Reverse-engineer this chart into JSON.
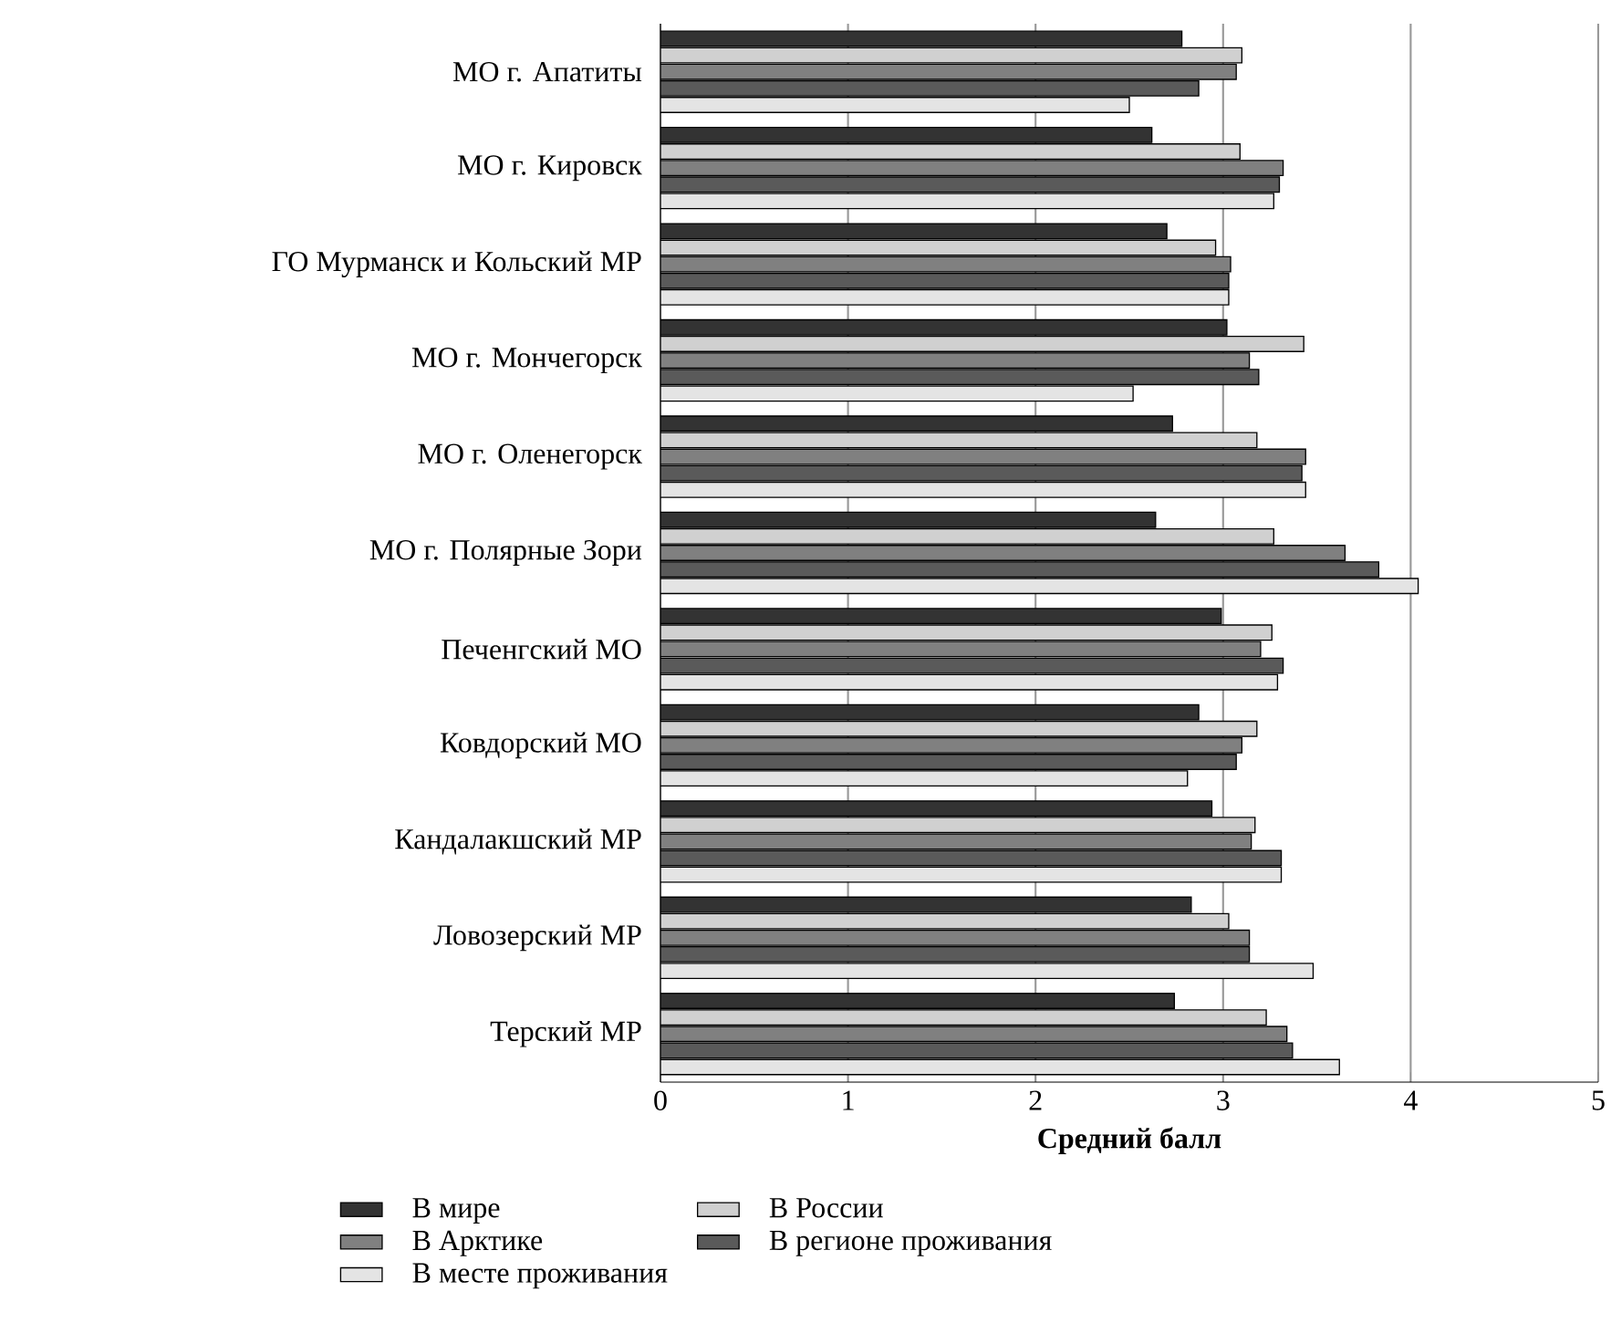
{
  "chart_data": {
    "type": "bar",
    "orientation": "horizontal",
    "xlabel": "Средний балл",
    "categories": [
      "МО г. Апатиты",
      "МО г. Кировск",
      "ГО Мурманск и Кольский МР",
      "МО г. Мончегорск",
      "МО г. Оленегорск",
      "МО г. Полярные Зори",
      "Печенгский МО",
      "Ковдорский МО",
      "Кандалакшский  МР",
      "Ловозерский МР",
      "Терский МР"
    ],
    "series": [
      {
        "name": "В мире",
        "color": "#333333",
        "values": [
          2.78,
          2.62,
          2.7,
          3.02,
          2.73,
          2.64,
          2.99,
          2.87,
          2.94,
          2.83,
          2.74
        ]
      },
      {
        "name": "В России",
        "color": "#d0d0d0",
        "values": [
          3.1,
          3.09,
          2.96,
          3.43,
          3.18,
          3.27,
          3.26,
          3.18,
          3.17,
          3.03,
          3.23
        ]
      },
      {
        "name": "В Арктике",
        "color": "#808080",
        "values": [
          3.07,
          3.32,
          3.04,
          3.14,
          3.44,
          3.65,
          3.2,
          3.1,
          3.15,
          3.14,
          3.34
        ]
      },
      {
        "name": "В регионе проживания",
        "color": "#5a5a5a",
        "values": [
          2.87,
          3.3,
          3.03,
          3.19,
          3.42,
          3.83,
          3.32,
          3.07,
          3.31,
          3.14,
          3.37
        ]
      },
      {
        "name": "В месте проживания",
        "color": "#e4e4e4",
        "values": [
          2.5,
          3.27,
          3.03,
          2.52,
          3.44,
          4.04,
          3.29,
          2.81,
          3.31,
          3.48,
          3.62
        ]
      }
    ],
    "xlim": [
      0,
      5
    ],
    "xticks": [
      0,
      1,
      2,
      3,
      4,
      5
    ],
    "grid": "x",
    "legend": "bottom"
  }
}
